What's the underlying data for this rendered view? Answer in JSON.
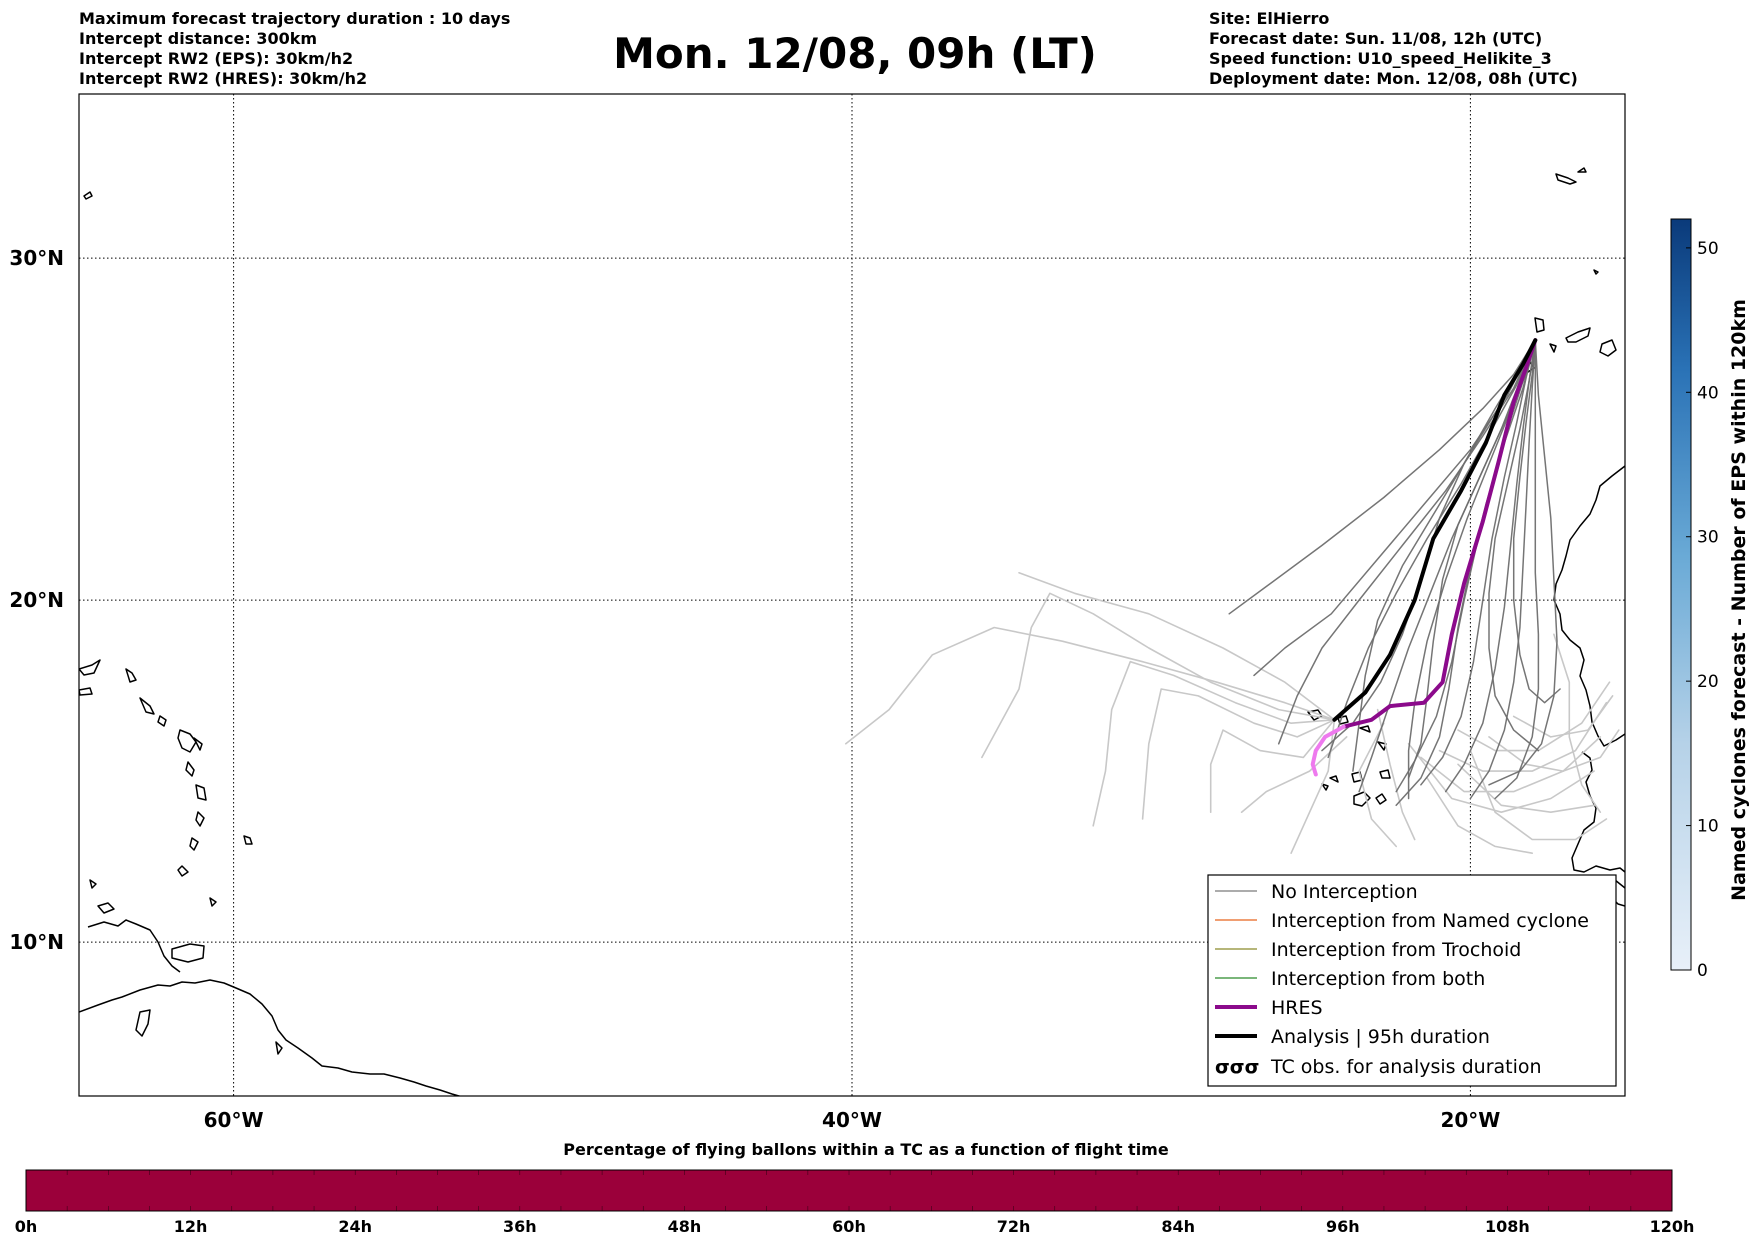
{
  "header": {
    "left_lines": [
      "Maximum forecast trajectory duration : 10 days",
      "Intercept distance: 300km",
      "Intercept RW2 (EPS):  30km/h2",
      "Intercept RW2 (HRES): 30km/h2"
    ],
    "title": "Mon. 12/08, 09h (LT)",
    "right_lines": [
      "Site: ElHierro",
      "Forecast date: Sun. 11/08, 12h (UTC)",
      "Speed function: U10_speed_Helikite_3",
      "Deployment date: Mon. 12/08, 08h (UTC)"
    ]
  },
  "map": {
    "lon_range": [
      -65,
      -15
    ],
    "lat_range": [
      5.5,
      34.8
    ],
    "lat_labels": [
      "10°N",
      "20°N",
      "30°N"
    ],
    "lat_values": [
      10,
      20,
      30
    ],
    "lon_labels": [
      "60°W",
      "40°W",
      "20°W"
    ],
    "lon_values": [
      -60,
      -40,
      -20
    ],
    "grid": "dotted",
    "coastline_color": "#000000"
  },
  "legend": {
    "placement": "lower-right",
    "items": [
      {
        "label": "No Interception",
        "color": "#7a7a7a",
        "width": 1.2,
        "kind": "line"
      },
      {
        "label": "Interception from Named cyclone",
        "color": "#e8641e",
        "width": 1.2,
        "kind": "line"
      },
      {
        "label": "Interception from Trochoid",
        "color": "#8a8a2a",
        "width": 1.2,
        "kind": "line"
      },
      {
        "label": "Interception from both",
        "color": "#2a8a2a",
        "width": 1.2,
        "kind": "line"
      },
      {
        "label": "HRES",
        "color": "#8b0a8b",
        "width": 4,
        "kind": "line"
      },
      {
        "label": "Analysis | 95h duration",
        "color": "#000000",
        "width": 4,
        "kind": "line"
      },
      {
        "label": "TC obs. for analysis duration",
        "symbol": "σσσ",
        "kind": "symbol"
      }
    ]
  },
  "colorbar_right": {
    "label": "Named cyclones forecast - Number of EPS within 120km",
    "ticks": [
      "0",
      "10",
      "20",
      "30",
      "40",
      "50"
    ],
    "tick_values": [
      0,
      10,
      20,
      30,
      40,
      50
    ],
    "range": [
      0,
      52
    ],
    "color_low": "#e8f0f9",
    "color_high": "#0a3a7a"
  },
  "colorbar_bottom": {
    "title": "Percentage of flying ballons within a TC as a function of flight time",
    "ticks": [
      "0h",
      "12h",
      "24h",
      "36h",
      "48h",
      "60h",
      "72h",
      "84h",
      "96h",
      "108h",
      "120h"
    ],
    "tick_hours": [
      0,
      12,
      24,
      36,
      48,
      60,
      72,
      84,
      96,
      108,
      120
    ],
    "range_hours": [
      0,
      120
    ],
    "fill_color": "#9b003a"
  },
  "chart_data": {
    "type": "map-trajectories",
    "origin": {
      "lon": -17.9,
      "lat": 27.6
    },
    "hres_track": [
      [
        -17.9,
        27.6
      ],
      [
        -18.2,
        26.8
      ],
      [
        -18.6,
        25.8
      ],
      [
        -19.1,
        24.0
      ],
      [
        -19.6,
        22.3
      ],
      [
        -20.2,
        20.5
      ],
      [
        -20.6,
        19.0
      ],
      [
        -20.9,
        17.6
      ],
      [
        -21.5,
        17.0
      ],
      [
        -22.6,
        16.9
      ],
      [
        -23.2,
        16.5
      ],
      [
        -24.1,
        16.3
      ]
    ],
    "hres_tail_track": [
      [
        -24.1,
        16.3
      ],
      [
        -24.7,
        16.0
      ],
      [
        -25.0,
        15.6
      ],
      [
        -25.1,
        15.2
      ],
      [
        -25.0,
        14.9
      ]
    ],
    "analysis_track": [
      [
        -17.9,
        27.6
      ],
      [
        -18.3,
        26.9
      ],
      [
        -18.9,
        26.0
      ],
      [
        -19.5,
        24.6
      ],
      [
        -20.3,
        23.2
      ],
      [
        -21.2,
        21.8
      ],
      [
        -21.8,
        20.0
      ],
      [
        -22.6,
        18.4
      ],
      [
        -23.4,
        17.3
      ],
      [
        -24.4,
        16.5
      ]
    ],
    "eps_dark": [
      [
        [
          -17.9,
          27.6
        ],
        [
          -18.8,
          26.0
        ],
        [
          -20.0,
          24.4
        ],
        [
          -21.5,
          22.8
        ],
        [
          -23.0,
          21.2
        ],
        [
          -24.5,
          19.6
        ],
        [
          -26.0,
          18.6
        ],
        [
          -27.0,
          17.8
        ]
      ],
      [
        [
          -17.9,
          27.6
        ],
        [
          -18.6,
          26.2
        ],
        [
          -19.6,
          24.8
        ],
        [
          -20.8,
          23.2
        ],
        [
          -22.2,
          21.6
        ],
        [
          -23.6,
          20.0
        ],
        [
          -24.8,
          18.6
        ],
        [
          -25.6,
          17.2
        ],
        [
          -26.2,
          15.8
        ]
      ],
      [
        [
          -17.9,
          27.6
        ],
        [
          -18.5,
          26.3
        ],
        [
          -19.3,
          25.0
        ],
        [
          -20.3,
          23.4
        ],
        [
          -21.4,
          21.8
        ],
        [
          -22.4,
          20.2
        ],
        [
          -23.3,
          18.6
        ],
        [
          -24.0,
          17.0
        ],
        [
          -24.6,
          15.4
        ]
      ],
      [
        [
          -17.9,
          27.6
        ],
        [
          -18.4,
          26.4
        ],
        [
          -19.0,
          25.0
        ],
        [
          -19.8,
          23.4
        ],
        [
          -20.6,
          21.8
        ],
        [
          -21.3,
          20.2
        ],
        [
          -22.0,
          18.6
        ],
        [
          -22.6,
          17.0
        ],
        [
          -23.2,
          15.4
        ],
        [
          -23.6,
          14.4
        ]
      ],
      [
        [
          -17.9,
          27.6
        ],
        [
          -18.3,
          26.4
        ],
        [
          -18.8,
          25.0
        ],
        [
          -19.3,
          23.4
        ],
        [
          -19.8,
          21.6
        ],
        [
          -20.2,
          20.0
        ],
        [
          -20.6,
          18.2
        ],
        [
          -21.1,
          16.6
        ],
        [
          -21.8,
          15.3
        ],
        [
          -22.4,
          14.4
        ]
      ],
      [
        [
          -17.9,
          27.6
        ],
        [
          -18.2,
          26.5
        ],
        [
          -18.5,
          25.2
        ],
        [
          -18.9,
          23.6
        ],
        [
          -19.3,
          21.8
        ],
        [
          -19.6,
          20.0
        ],
        [
          -19.9,
          18.2
        ],
        [
          -20.3,
          16.6
        ],
        [
          -20.9,
          15.4
        ],
        [
          -21.6,
          14.6
        ]
      ],
      [
        [
          -17.9,
          27.6
        ],
        [
          -18.1,
          26.4
        ],
        [
          -18.3,
          25.0
        ],
        [
          -18.5,
          23.4
        ],
        [
          -18.7,
          21.6
        ],
        [
          -18.9,
          19.8
        ],
        [
          -19.2,
          18.0
        ],
        [
          -19.6,
          16.4
        ],
        [
          -20.2,
          15.2
        ],
        [
          -20.8,
          14.4
        ]
      ],
      [
        [
          -17.9,
          27.6
        ],
        [
          -18.0,
          26.2
        ],
        [
          -18.1,
          24.6
        ],
        [
          -18.2,
          22.8
        ],
        [
          -18.3,
          21.0
        ],
        [
          -18.4,
          19.2
        ],
        [
          -18.6,
          17.6
        ],
        [
          -18.9,
          16.2
        ],
        [
          -19.4,
          15.0
        ],
        [
          -20.0,
          14.2
        ]
      ],
      [
        [
          -17.9,
          27.6
        ],
        [
          -17.9,
          26.0
        ],
        [
          -17.9,
          24.4
        ],
        [
          -17.9,
          22.6
        ],
        [
          -17.9,
          20.8
        ],
        [
          -17.8,
          19.0
        ],
        [
          -17.8,
          17.4
        ],
        [
          -18.0,
          16.0
        ],
        [
          -18.5,
          14.8
        ],
        [
          -19.2,
          14.2
        ]
      ],
      [
        [
          -17.9,
          27.6
        ],
        [
          -17.8,
          26.0
        ],
        [
          -17.6,
          24.2
        ],
        [
          -17.4,
          22.4
        ],
        [
          -17.3,
          20.6
        ],
        [
          -17.2,
          18.8
        ],
        [
          -17.3,
          17.2
        ],
        [
          -17.7,
          15.8
        ],
        [
          -18.4,
          15.0
        ],
        [
          -19.4,
          14.6
        ]
      ],
      [
        [
          -17.9,
          27.6
        ],
        [
          -18.6,
          26.6
        ],
        [
          -19.6,
          25.6
        ],
        [
          -21.0,
          24.4
        ],
        [
          -22.8,
          23.0
        ],
        [
          -24.8,
          21.6
        ],
        [
          -26.6,
          20.4
        ],
        [
          -27.8,
          19.6
        ]
      ],
      [
        [
          -17.9,
          27.6
        ],
        [
          -18.4,
          26.8
        ],
        [
          -19.2,
          25.6
        ],
        [
          -20.2,
          24.0
        ],
        [
          -21.0,
          22.4
        ],
        [
          -21.6,
          20.6
        ],
        [
          -22.2,
          19.0
        ],
        [
          -22.9,
          17.6
        ],
        [
          -23.8,
          16.4
        ],
        [
          -24.8,
          15.6
        ]
      ],
      [
        [
          -17.9,
          27.6
        ],
        [
          -18.2,
          26.6
        ],
        [
          -18.8,
          25.4
        ],
        [
          -19.6,
          23.8
        ],
        [
          -20.4,
          22.2
        ],
        [
          -20.9,
          20.6
        ],
        [
          -21.2,
          18.8
        ],
        [
          -21.4,
          17.2
        ],
        [
          -21.6,
          15.8
        ],
        [
          -22.0,
          14.8
        ]
      ],
      [
        [
          -17.9,
          27.6
        ],
        [
          -18.0,
          26.6
        ],
        [
          -18.2,
          25.2
        ],
        [
          -18.4,
          23.6
        ],
        [
          -18.6,
          21.8
        ],
        [
          -18.6,
          20.0
        ],
        [
          -18.4,
          18.4
        ],
        [
          -18.1,
          17.4
        ],
        [
          -17.6,
          17.0
        ],
        [
          -17.1,
          17.4
        ]
      ],
      [
        [
          -17.9,
          27.6
        ],
        [
          -18.1,
          26.4
        ],
        [
          -18.4,
          25.0
        ],
        [
          -18.8,
          23.4
        ],
        [
          -19.2,
          21.8
        ],
        [
          -19.4,
          20.2
        ],
        [
          -19.4,
          18.6
        ],
        [
          -19.2,
          17.2
        ],
        [
          -18.6,
          16.2
        ],
        [
          -17.8,
          15.6
        ]
      ],
      [
        [
          -17.9,
          27.6
        ],
        [
          -18.7,
          26.2
        ],
        [
          -19.8,
          24.6
        ],
        [
          -21.0,
          22.8
        ],
        [
          -22.2,
          21.0
        ],
        [
          -23.0,
          19.4
        ],
        [
          -23.4,
          17.8
        ],
        [
          -23.6,
          16.4
        ],
        [
          -23.8,
          15.0
        ]
      ],
      [
        [
          -17.9,
          27.6
        ],
        [
          -18.3,
          26.2
        ],
        [
          -18.9,
          24.6
        ],
        [
          -19.5,
          22.8
        ],
        [
          -20.0,
          21.0
        ],
        [
          -20.4,
          19.2
        ],
        [
          -20.7,
          17.4
        ],
        [
          -21.0,
          16.0
        ],
        [
          -21.6,
          14.8
        ],
        [
          -22.4,
          14.0
        ]
      ],
      [
        [
          -17.9,
          27.6
        ],
        [
          -18.5,
          26.0
        ],
        [
          -19.3,
          24.2
        ],
        [
          -20.1,
          22.4
        ],
        [
          -20.8,
          20.6
        ],
        [
          -21.4,
          18.8
        ],
        [
          -21.8,
          17.0
        ],
        [
          -22.0,
          15.6
        ],
        [
          -22.0,
          14.2
        ]
      ]
    ],
    "eps_light": [
      [
        [
          -24.4,
          16.5
        ],
        [
          -26.0,
          17.6
        ],
        [
          -28.0,
          18.6
        ],
        [
          -30.4,
          19.6
        ],
        [
          -32.8,
          20.2
        ],
        [
          -34.6,
          20.8
        ]
      ],
      [
        [
          -24.4,
          16.5
        ],
        [
          -26.0,
          17.0
        ],
        [
          -28.2,
          17.6
        ],
        [
          -30.6,
          18.2
        ],
        [
          -33.2,
          18.8
        ],
        [
          -35.4,
          19.2
        ],
        [
          -37.4,
          18.4
        ],
        [
          -38.8,
          16.8
        ],
        [
          -40.2,
          15.8
        ]
      ],
      [
        [
          -24.4,
          16.5
        ],
        [
          -26.2,
          16.8
        ],
        [
          -28.4,
          17.6
        ],
        [
          -30.4,
          18.6
        ],
        [
          -32.2,
          19.6
        ],
        [
          -33.6,
          20.2
        ],
        [
          -34.2,
          19.2
        ],
        [
          -34.6,
          17.4
        ],
        [
          -35.8,
          15.4
        ]
      ],
      [
        [
          -24.4,
          16.5
        ],
        [
          -25.8,
          16.4
        ],
        [
          -27.6,
          17.0
        ],
        [
          -29.6,
          17.8
        ],
        [
          -31.0,
          18.2
        ],
        [
          -31.6,
          16.8
        ],
        [
          -31.8,
          15.0
        ],
        [
          -32.2,
          13.4
        ]
      ],
      [
        [
          -24.4,
          16.5
        ],
        [
          -25.6,
          16.0
        ],
        [
          -27.0,
          16.4
        ],
        [
          -28.8,
          17.2
        ],
        [
          -30.0,
          17.4
        ],
        [
          -30.4,
          15.8
        ],
        [
          -30.6,
          13.6
        ]
      ],
      [
        [
          -24.4,
          16.5
        ],
        [
          -25.4,
          15.4
        ],
        [
          -26.8,
          15.6
        ],
        [
          -28.0,
          16.2
        ],
        [
          -28.4,
          15.2
        ],
        [
          -28.4,
          13.8
        ]
      ],
      [
        [
          -24.4,
          16.5
        ],
        [
          -24.6,
          15.0
        ],
        [
          -25.2,
          13.8
        ],
        [
          -25.8,
          12.6
        ]
      ],
      [
        [
          -23.0,
          16.8
        ],
        [
          -22.6,
          15.2
        ],
        [
          -22.2,
          13.8
        ],
        [
          -21.8,
          13.0
        ]
      ],
      [
        [
          -22.0,
          15.8
        ],
        [
          -20.6,
          14.2
        ],
        [
          -19.0,
          13.8
        ],
        [
          -17.4,
          14.2
        ],
        [
          -16.0,
          15.0
        ]
      ],
      [
        [
          -21.6,
          15.4
        ],
        [
          -20.2,
          14.4
        ],
        [
          -18.6,
          14.4
        ],
        [
          -17.0,
          15.0
        ],
        [
          -15.8,
          16.0
        ]
      ],
      [
        [
          -21.0,
          15.6
        ],
        [
          -19.6,
          15.0
        ],
        [
          -18.0,
          15.0
        ],
        [
          -16.6,
          15.6
        ],
        [
          -15.6,
          17.0
        ]
      ],
      [
        [
          -20.4,
          16.2
        ],
        [
          -19.2,
          15.6
        ],
        [
          -17.8,
          15.6
        ],
        [
          -16.4,
          16.4
        ],
        [
          -15.5,
          17.6
        ]
      ],
      [
        [
          -20.4,
          15.2
        ],
        [
          -19.0,
          14.0
        ],
        [
          -17.4,
          13.8
        ],
        [
          -16.0,
          14.0
        ]
      ],
      [
        [
          -21.4,
          14.8
        ],
        [
          -20.4,
          13.4
        ],
        [
          -19.2,
          12.8
        ],
        [
          -18.0,
          12.6
        ]
      ],
      [
        [
          -19.4,
          16.0
        ],
        [
          -18.2,
          15.2
        ],
        [
          -17.0,
          15.0
        ],
        [
          -15.8,
          15.4
        ],
        [
          -15.2,
          16.2
        ]
      ],
      [
        [
          -18.6,
          16.6
        ],
        [
          -17.4,
          16.0
        ],
        [
          -16.2,
          16.2
        ],
        [
          -15.4,
          17.2
        ]
      ],
      [
        [
          -17.3,
          19.0
        ],
        [
          -16.8,
          17.6
        ],
        [
          -16.8,
          16.0
        ],
        [
          -16.4,
          14.6
        ],
        [
          -15.8,
          13.8
        ]
      ],
      [
        [
          -22.8,
          16.4
        ],
        [
          -23.6,
          15.0
        ],
        [
          -23.2,
          13.6
        ],
        [
          -22.4,
          12.8
        ]
      ],
      [
        [
          -24.0,
          16.0
        ],
        [
          -25.2,
          15.0
        ],
        [
          -26.6,
          14.4
        ],
        [
          -27.4,
          13.8
        ]
      ],
      [
        [
          -20.0,
          15.6
        ],
        [
          -19.2,
          13.8
        ],
        [
          -18.0,
          13.0
        ],
        [
          -16.6,
          13.0
        ],
        [
          -15.6,
          13.6
        ]
      ]
    ]
  }
}
